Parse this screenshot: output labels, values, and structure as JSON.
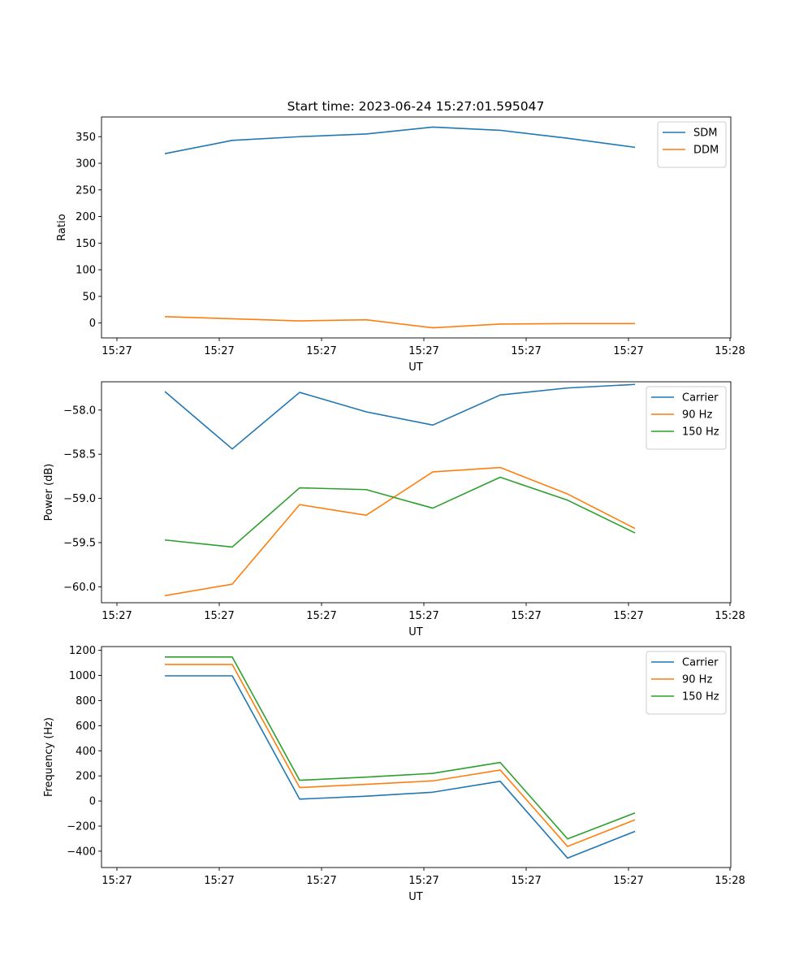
{
  "figure": {
    "title": "Start time: 2023-06-24 15:27:01.595047"
  },
  "colors": {
    "blue": "#1f77b4",
    "orange": "#ff7f0e",
    "green": "#2ca02c"
  },
  "chart_data": [
    {
      "type": "line",
      "title": "Start time: 2023-06-24 15:27:01.595047",
      "xlabel": "UT",
      "ylabel": "Ratio",
      "x_tick_labels": [
        "15:27",
        "15:27",
        "15:27",
        "15:27",
        "15:27",
        "15:27",
        "15:28"
      ],
      "ylim": [
        -28,
        387
      ],
      "yticks": [
        0,
        50,
        100,
        150,
        200,
        250,
        300,
        350
      ],
      "legend": "top-right",
      "grid": false,
      "series": [
        {
          "name": "SDM",
          "color": "#1f77b4",
          "values": [
            318,
            343,
            350,
            355,
            368,
            362,
            347,
            330
          ]
        },
        {
          "name": "DDM",
          "color": "#ff7f0e",
          "values": [
            12,
            8,
            4,
            6,
            -9,
            -2,
            -1,
            -1
          ]
        }
      ]
    },
    {
      "type": "line",
      "xlabel": "UT",
      "ylabel": "Power (dB)",
      "x_tick_labels": [
        "15:27",
        "15:27",
        "15:27",
        "15:27",
        "15:27",
        "15:27",
        "15:28"
      ],
      "ylim": [
        -60.18,
        -57.68
      ],
      "yticks": [
        -60.0,
        -59.5,
        -59.0,
        -58.5,
        -58.0
      ],
      "ytick_labels": [
        "−60.0",
        "−59.5",
        "−59.0",
        "−58.5",
        "−58.0"
      ],
      "legend": "top-right",
      "grid": false,
      "series": [
        {
          "name": "Carrier",
          "color": "#1f77b4",
          "values": [
            -57.79,
            -58.44,
            -57.8,
            -58.02,
            -58.17,
            -57.83,
            -57.75,
            -57.71
          ]
        },
        {
          "name": "90 Hz",
          "color": "#ff7f0e",
          "values": [
            -60.1,
            -59.97,
            -59.07,
            -59.19,
            -58.7,
            -58.65,
            -58.95,
            -59.34
          ]
        },
        {
          "name": "150 Hz",
          "color": "#2ca02c",
          "values": [
            -59.47,
            -59.55,
            -58.88,
            -58.9,
            -59.11,
            -58.76,
            -59.02,
            -59.39
          ]
        }
      ]
    },
    {
      "type": "line",
      "xlabel": "UT",
      "ylabel": "Frequency (Hz)",
      "x_tick_labels": [
        "15:27",
        "15:27",
        "15:27",
        "15:27",
        "15:27",
        "15:27",
        "15:28"
      ],
      "ylim": [
        -530,
        1230
      ],
      "yticks": [
        -400,
        -200,
        0,
        200,
        400,
        600,
        800,
        1000,
        1200
      ],
      "ytick_labels": [
        "−400",
        "−200",
        "0",
        "200",
        "400",
        "600",
        "800",
        "1000",
        "1200"
      ],
      "legend": "top-right",
      "grid": false,
      "series": [
        {
          "name": "Carrier",
          "color": "#1f77b4",
          "values": [
            997,
            997,
            15,
            38,
            70,
            157,
            -455,
            -242
          ]
        },
        {
          "name": "90 Hz",
          "color": "#ff7f0e",
          "values": [
            1087,
            1087,
            107,
            133,
            160,
            247,
            -362,
            -150
          ]
        },
        {
          "name": "150 Hz",
          "color": "#2ca02c",
          "values": [
            1147,
            1147,
            165,
            190,
            220,
            307,
            -302,
            -95
          ]
        }
      ]
    }
  ]
}
